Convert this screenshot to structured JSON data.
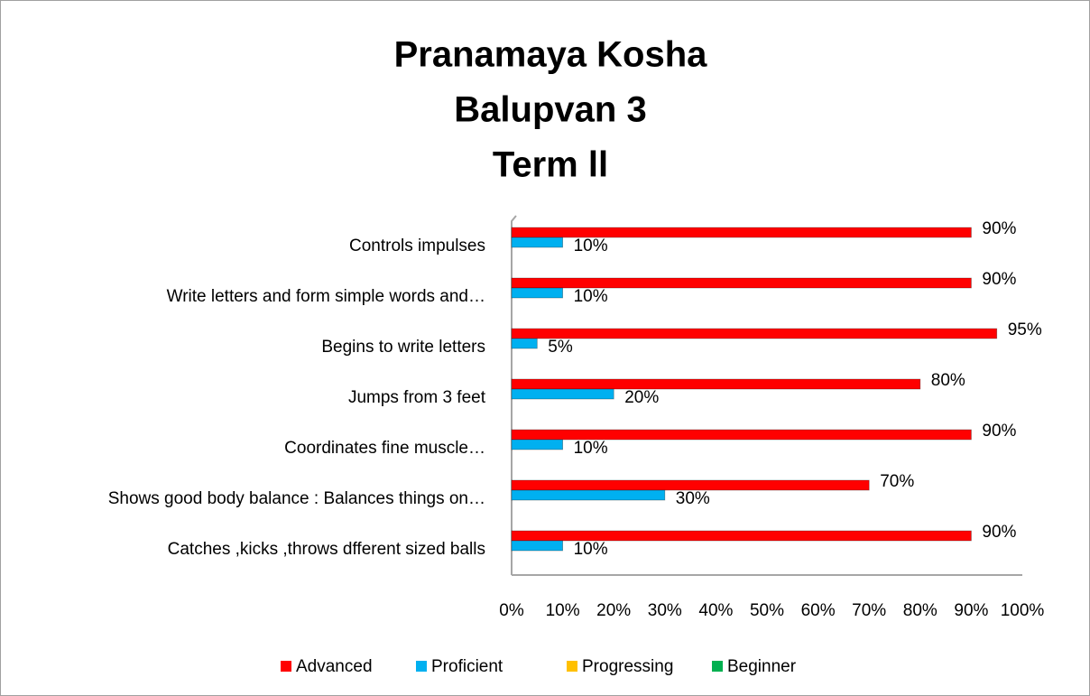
{
  "chart_data": {
    "type": "bar",
    "orientation": "horizontal",
    "title": [
      "Pranamaya Kosha",
      "Balupvan 3",
      "Term ll"
    ],
    "categories": [
      "Catches ,kicks ,throws  dfferent sized balls",
      "Shows good body balance : Balances things on…",
      "Coordinates fine muscle…",
      "Jumps from 3 feet",
      "Begins to write letters",
      "Write letters and form simple words and…",
      "Controls impulses"
    ],
    "series": [
      {
        "name": "Advanced",
        "color": "#ff0000",
        "values": [
          90,
          70,
          90,
          80,
          95,
          90,
          90
        ],
        "value_labels": [
          "90%",
          "70%",
          "90%",
          "80%",
          "95%",
          "90%",
          "90%"
        ]
      },
      {
        "name": "Proficient",
        "color": "#00b0f0",
        "values": [
          10,
          30,
          10,
          20,
          5,
          10,
          10
        ],
        "value_labels": [
          "10%",
          "30%",
          "10%",
          "20%",
          "5%",
          "10%",
          "10%"
        ]
      },
      {
        "name": "Progressing",
        "color": "#ffc000",
        "values": [
          0,
          0,
          0,
          0,
          0,
          0,
          0
        ]
      },
      {
        "name": "Beginner",
        "color": "#00b050",
        "values": [
          0,
          0,
          0,
          0,
          0,
          0,
          0
        ]
      }
    ],
    "xlim": [
      0,
      100
    ],
    "xticks": [
      {
        "value": 0,
        "label": "0%"
      },
      {
        "value": 10,
        "label": "10%"
      },
      {
        "value": 20,
        "label": "20%"
      },
      {
        "value": 30,
        "label": "30%"
      },
      {
        "value": 40,
        "label": "40%"
      },
      {
        "value": 50,
        "label": "50%"
      },
      {
        "value": 60,
        "label": "60%"
      },
      {
        "value": 70,
        "label": "70%"
      },
      {
        "value": 80,
        "label": "80%"
      },
      {
        "value": 90,
        "label": "90%"
      },
      {
        "value": 100,
        "label": "100%"
      }
    ],
    "grid": false,
    "legend": "bottom"
  }
}
